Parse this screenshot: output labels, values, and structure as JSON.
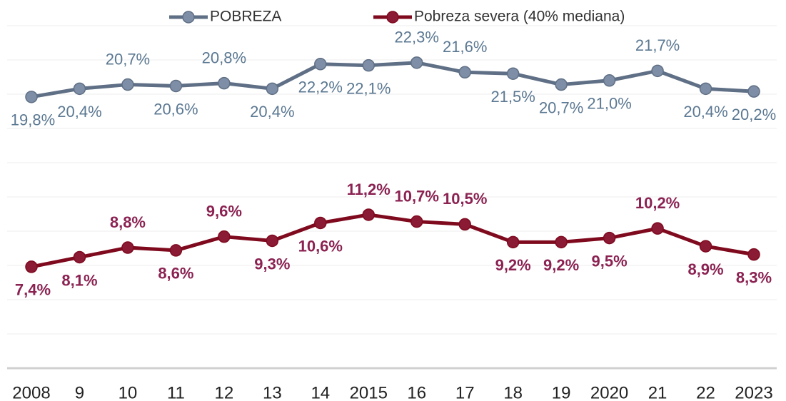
{
  "chart_data": {
    "type": "line",
    "categories": [
      "2008",
      "9",
      "10",
      "11",
      "12",
      "13",
      "14",
      "2015",
      "16",
      "17",
      "18",
      "19",
      "2020",
      "21",
      "22",
      "2023"
    ],
    "series": [
      {
        "name": "POBREZA",
        "color": "#5f6f85",
        "values": [
          19.8,
          20.4,
          20.7,
          20.6,
          20.8,
          20.4,
          22.2,
          22.1,
          22.3,
          21.6,
          21.5,
          20.7,
          21.0,
          21.7,
          20.4,
          20.2
        ],
        "value_labels": [
          "19,8%",
          "20,4%",
          "20,7%",
          "20,6%",
          "20,8%",
          "20,4%",
          "22,2%",
          "22,1%",
          "22,3%",
          "21,6%",
          "21,5%",
          "20,7%",
          "21,0%",
          "21,7%",
          "20,4%",
          "20,2%"
        ]
      },
      {
        "name": "Pobreza severa (40% mediana)",
        "color": "#7f0a1e",
        "values": [
          7.4,
          8.1,
          8.8,
          8.6,
          9.6,
          9.3,
          10.6,
          11.2,
          10.7,
          10.5,
          9.2,
          9.2,
          9.5,
          10.2,
          8.9,
          8.3
        ],
        "value_labels": [
          "7,4%",
          "8,1%",
          "8,8%",
          "8,6%",
          "9,6%",
          "9,3%",
          "10,6%",
          "11,2%",
          "10,7%",
          "10,5%",
          "9,2%",
          "9,2%",
          "9,5%",
          "10,2%",
          "8,9%",
          "8,3%"
        ]
      }
    ],
    "ylim": [
      0,
      25
    ],
    "yticks": [
      0,
      2.5,
      5,
      7.5,
      10,
      12.5,
      15,
      17.5,
      20,
      22.5,
      25
    ],
    "grid": true,
    "legend": "top"
  }
}
